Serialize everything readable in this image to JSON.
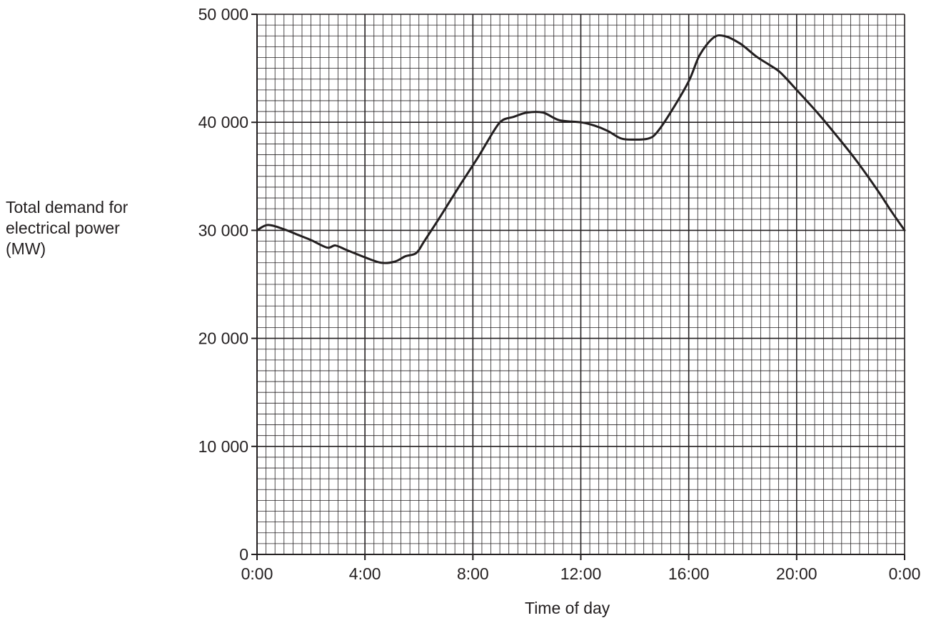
{
  "chart_data": {
    "type": "line",
    "xlabel": "Time of day",
    "ylabel_lines": [
      "Total demand for",
      "electrical power",
      "(MW)"
    ],
    "x_range_hours": [
      0,
      24
    ],
    "x_ticks": [
      {
        "hour": 0,
        "label": "0:00"
      },
      {
        "hour": 4,
        "label": "4:00"
      },
      {
        "hour": 8,
        "label": "8:00"
      },
      {
        "hour": 12,
        "label": "12:00"
      },
      {
        "hour": 16,
        "label": "16:00"
      },
      {
        "hour": 20,
        "label": "20:00"
      },
      {
        "hour": 24,
        "label": "0:00"
      }
    ],
    "ylim": [
      0,
      50000
    ],
    "y_ticks": [
      {
        "value": 0,
        "label": "0"
      },
      {
        "value": 10000,
        "label": "10 000"
      },
      {
        "value": 20000,
        "label": "20 000"
      },
      {
        "value": 30000,
        "label": "30 000"
      },
      {
        "value": 40000,
        "label": "40 000"
      },
      {
        "value": 50000,
        "label": "50 000"
      }
    ],
    "grid": true,
    "series": [
      {
        "points": [
          [
            0.0,
            30000
          ],
          [
            0.4,
            30500
          ],
          [
            1.0,
            30100
          ],
          [
            1.5,
            29600
          ],
          [
            2.0,
            29100
          ],
          [
            2.6,
            28400
          ],
          [
            2.9,
            28600
          ],
          [
            3.3,
            28200
          ],
          [
            4.0,
            27500
          ],
          [
            4.6,
            27000
          ],
          [
            5.1,
            27100
          ],
          [
            5.5,
            27600
          ],
          [
            5.9,
            27900
          ],
          [
            6.2,
            29000
          ],
          [
            6.8,
            31300
          ],
          [
            7.5,
            34100
          ],
          [
            8.2,
            36800
          ],
          [
            8.8,
            39300
          ],
          [
            9.1,
            40200
          ],
          [
            9.5,
            40500
          ],
          [
            10.0,
            40900
          ],
          [
            10.6,
            40900
          ],
          [
            11.2,
            40200
          ],
          [
            12.0,
            40000
          ],
          [
            12.5,
            39700
          ],
          [
            13.0,
            39200
          ],
          [
            13.5,
            38500
          ],
          [
            14.0,
            38400
          ],
          [
            14.5,
            38500
          ],
          [
            14.8,
            39000
          ],
          [
            15.3,
            40800
          ],
          [
            16.0,
            43800
          ],
          [
            16.4,
            46200
          ],
          [
            16.9,
            47800
          ],
          [
            17.3,
            48000
          ],
          [
            17.9,
            47300
          ],
          [
            18.5,
            46100
          ],
          [
            19.0,
            45300
          ],
          [
            19.4,
            44600
          ],
          [
            20.0,
            43000
          ],
          [
            20.8,
            40800
          ],
          [
            21.5,
            38700
          ],
          [
            22.2,
            36500
          ],
          [
            23.0,
            33700
          ],
          [
            23.5,
            31800
          ],
          [
            24.0,
            30000
          ]
        ]
      }
    ]
  }
}
